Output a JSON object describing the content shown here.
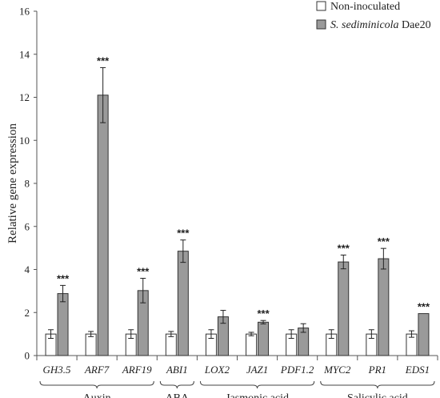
{
  "chart_data": {
    "type": "bar",
    "ylabel": "Relative gene expression",
    "ylim": [
      0,
      16
    ],
    "yticks": [
      0,
      2,
      4,
      6,
      8,
      10,
      12,
      14,
      16
    ],
    "grid": false,
    "legend_position": "top-right",
    "categories": [
      "GH3.5",
      "ARF7",
      "ARF19",
      "ABI1",
      "LOX2",
      "JAZ1",
      "PDF1.2",
      "MYC2",
      "PR1",
      "EDS1"
    ],
    "groups": [
      {
        "label": "Auxin",
        "genes": [
          "GH3.5",
          "ARF7",
          "ARF19"
        ]
      },
      {
        "label": "ABA",
        "genes": [
          "ABI1"
        ]
      },
      {
        "label": "Jasmonic  acid",
        "genes": [
          "LOX2",
          "JAZ1",
          "PDF1.2"
        ]
      },
      {
        "label": "Salicylic acid",
        "genes": [
          "MYC2",
          "PR1",
          "EDS1"
        ]
      }
    ],
    "series": [
      {
        "name": "Non-inoculated",
        "name_italic": "",
        "name_suffix": "",
        "color": "#ffffff",
        "values": [
          1.0,
          1.0,
          1.0,
          1.0,
          1.0,
          1.0,
          1.0,
          1.0,
          1.0,
          1.0
        ],
        "errors": [
          0.2,
          0.12,
          0.2,
          0.12,
          0.2,
          0.08,
          0.2,
          0.2,
          0.2,
          0.15
        ]
      },
      {
        "name": "S. sediminicola Dae20",
        "name_italic": "S. sediminicola",
        "name_suffix": " Dae20",
        "color": "#9a9a9a",
        "values": [
          2.88,
          12.1,
          3.02,
          4.85,
          1.8,
          1.55,
          1.28,
          4.35,
          4.5,
          1.95
        ],
        "errors": [
          0.38,
          1.28,
          0.57,
          0.52,
          0.3,
          0.08,
          0.2,
          0.32,
          0.48,
          0.0
        ],
        "significance": [
          "***",
          "***",
          "***",
          "***",
          "",
          "***",
          "",
          "***",
          "***",
          "***"
        ]
      }
    ]
  }
}
